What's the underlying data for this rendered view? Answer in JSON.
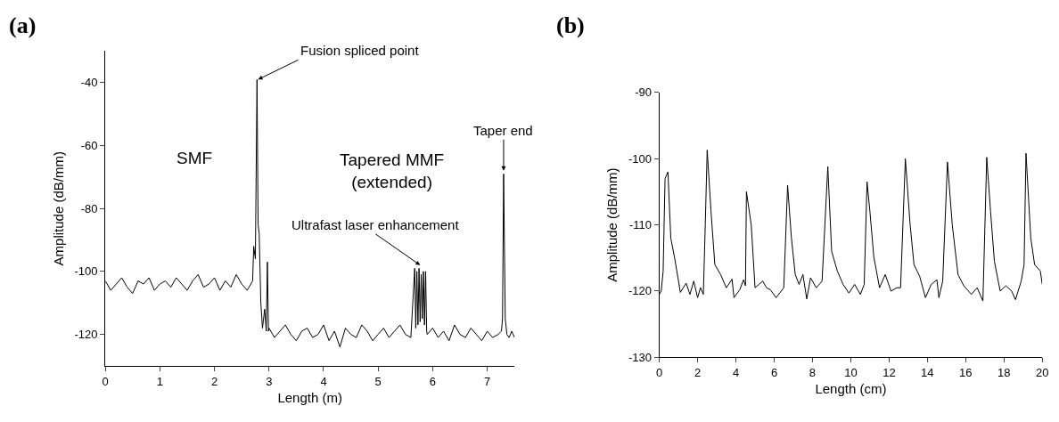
{
  "chart_data": [
    {
      "type": "line",
      "title": "(a)",
      "xlabel": "Length (m)",
      "ylabel": "Amplitude (dB/mm)",
      "xlim": [
        0,
        7.5
      ],
      "xticks": [
        0,
        1,
        2,
        3,
        4,
        5,
        6,
        7
      ],
      "ylim": [
        -130,
        -30
      ],
      "yticks": [
        -40,
        -60,
        -80,
        -100,
        -120
      ],
      "marker": "none",
      "line_style": "solid",
      "annotations": [
        "SMF",
        "Tapered MMF\n(extended)",
        {
          "text": "Fusion spliced point",
          "x": 2.8,
          "y": -39
        },
        {
          "text": "Ultrafast laser enhancement",
          "x": 5.77,
          "y": -98
        },
        {
          "text": "Taper end",
          "x": 7.3,
          "y": -68
        }
      ],
      "series": [
        {
          "color": "#000000",
          "x": [
            0,
            0.1,
            0.2,
            0.3,
            0.4,
            0.5,
            0.6,
            0.7,
            0.8,
            0.9,
            1.0,
            1.1,
            1.2,
            1.3,
            1.4,
            1.5,
            1.6,
            1.7,
            1.8,
            1.9,
            2.0,
            2.1,
            2.2,
            2.3,
            2.4,
            2.5,
            2.6,
            2.7,
            2.72,
            2.75,
            2.78,
            2.8,
            2.82,
            2.85,
            2.88,
            2.92,
            2.95,
            2.97,
            2.99,
            3.0,
            3.1,
            3.2,
            3.3,
            3.4,
            3.5,
            3.6,
            3.7,
            3.8,
            3.9,
            4.0,
            4.1,
            4.2,
            4.3,
            4.4,
            4.5,
            4.6,
            4.7,
            4.8,
            4.9,
            5.0,
            5.1,
            5.2,
            5.3,
            5.4,
            5.5,
            5.6,
            5.67,
            5.69,
            5.71,
            5.73,
            5.75,
            5.77,
            5.79,
            5.81,
            5.83,
            5.85,
            5.87,
            5.89,
            5.9,
            6.0,
            6.1,
            6.2,
            6.3,
            6.4,
            6.5,
            6.6,
            6.7,
            6.8,
            6.9,
            7.0,
            7.1,
            7.2,
            7.26,
            7.28,
            7.3,
            7.33,
            7.36,
            7.4,
            7.45,
            7.5
          ],
          "values": [
            -103,
            -106,
            -104,
            -102,
            -105,
            -107,
            -103,
            -104,
            -102,
            -106,
            -104,
            -103,
            -105,
            -102,
            -104,
            -106,
            -103,
            -101,
            -105,
            -104,
            -102,
            -106,
            -103,
            -105,
            -101,
            -104,
            -106,
            -103,
            -92,
            -96,
            -39,
            -85,
            -88,
            -110,
            -118,
            -112,
            -119,
            -97,
            -119,
            -118,
            -121,
            -119,
            -117,
            -120,
            -122,
            -119,
            -118,
            -121,
            -120,
            -117,
            -122,
            -119,
            -124,
            -118,
            -120,
            -121,
            -117,
            -119,
            -122,
            -120,
            -118,
            -121,
            -119,
            -117,
            -120,
            -121,
            -99,
            -118,
            -100,
            -117,
            -99,
            -116,
            -101,
            -115,
            -100,
            -117,
            -100,
            -119,
            -120,
            -118,
            -121,
            -119,
            -122,
            -117,
            -120,
            -121,
            -118,
            -120,
            -122,
            -119,
            -121,
            -120,
            -119,
            -115,
            -69,
            -115,
            -120,
            -121,
            -119,
            -121
          ]
        }
      ]
    },
    {
      "type": "line",
      "title": "(b)",
      "xlabel": "Length (cm)",
      "ylabel": "Amplitude (dB/mm)",
      "xlim": [
        0,
        20
      ],
      "xticks": [
        0,
        2,
        4,
        6,
        8,
        10,
        12,
        14,
        16,
        18,
        20
      ],
      "ylim": [
        -130,
        -90
      ],
      "yticks": [
        -90,
        -100,
        -110,
        -120,
        -130
      ],
      "marker": "none",
      "line_style": "solid",
      "series": [
        {
          "color": "#000000",
          "x": [
            0,
            0.1,
            0.2,
            0.3,
            0.45,
            0.6,
            0.8,
            1.1,
            1.4,
            1.6,
            1.8,
            2.0,
            2.15,
            2.3,
            2.4,
            2.5,
            2.7,
            2.9,
            3.2,
            3.5,
            3.8,
            3.9,
            4.2,
            4.4,
            4.5,
            4.55,
            4.8,
            5.0,
            5.2,
            5.4,
            5.6,
            5.8,
            6.1,
            6.5,
            6.7,
            6.9,
            7.1,
            7.3,
            7.5,
            7.7,
            7.9,
            8.2,
            8.5,
            8.8,
            9.0,
            9.3,
            9.6,
            9.9,
            10.2,
            10.5,
            10.7,
            10.85,
            11.0,
            11.2,
            11.5,
            11.8,
            12.1,
            12.4,
            12.6,
            12.85,
            13.1,
            13.3,
            13.6,
            13.9,
            14.2,
            14.5,
            14.6,
            14.8,
            15.05,
            15.3,
            15.6,
            15.9,
            16.3,
            16.6,
            16.9,
            17.1,
            17.3,
            17.5,
            17.8,
            18.1,
            18.4,
            18.6,
            18.9,
            19.05,
            19.15,
            19.4,
            19.6,
            19.9,
            20.0
          ],
          "values": [
            -120.5,
            -120,
            -117,
            -103,
            -102,
            -112,
            -115,
            -120.2,
            -118.8,
            -120.5,
            -118.5,
            -121,
            -119.5,
            -120.5,
            -110,
            -98.7,
            -108,
            -116,
            -117.5,
            -119.5,
            -118.2,
            -121,
            -119.8,
            -118.3,
            -119.2,
            -105,
            -110,
            -119.5,
            -119,
            -118.5,
            -119.5,
            -119.8,
            -121,
            -119.5,
            -104,
            -112,
            -117.5,
            -119,
            -117.5,
            -121.2,
            -118,
            -119.5,
            -118.5,
            -101.2,
            -114,
            -117,
            -119,
            -120.3,
            -119,
            -120.5,
            -119,
            -103.5,
            -108,
            -114.8,
            -119.5,
            -117.5,
            -120,
            -119.5,
            -119.5,
            -100,
            -110,
            -116,
            -117.8,
            -121,
            -119,
            -118.3,
            -121,
            -118.5,
            -100.5,
            -110,
            -117.5,
            -119.2,
            -120.5,
            -119.5,
            -121.5,
            -99.8,
            -108,
            -115.5,
            -120,
            -119.2,
            -120,
            -121.3,
            -118.5,
            -116,
            -99.2,
            -112,
            -116,
            -117,
            -119
          ]
        }
      ]
    }
  ]
}
